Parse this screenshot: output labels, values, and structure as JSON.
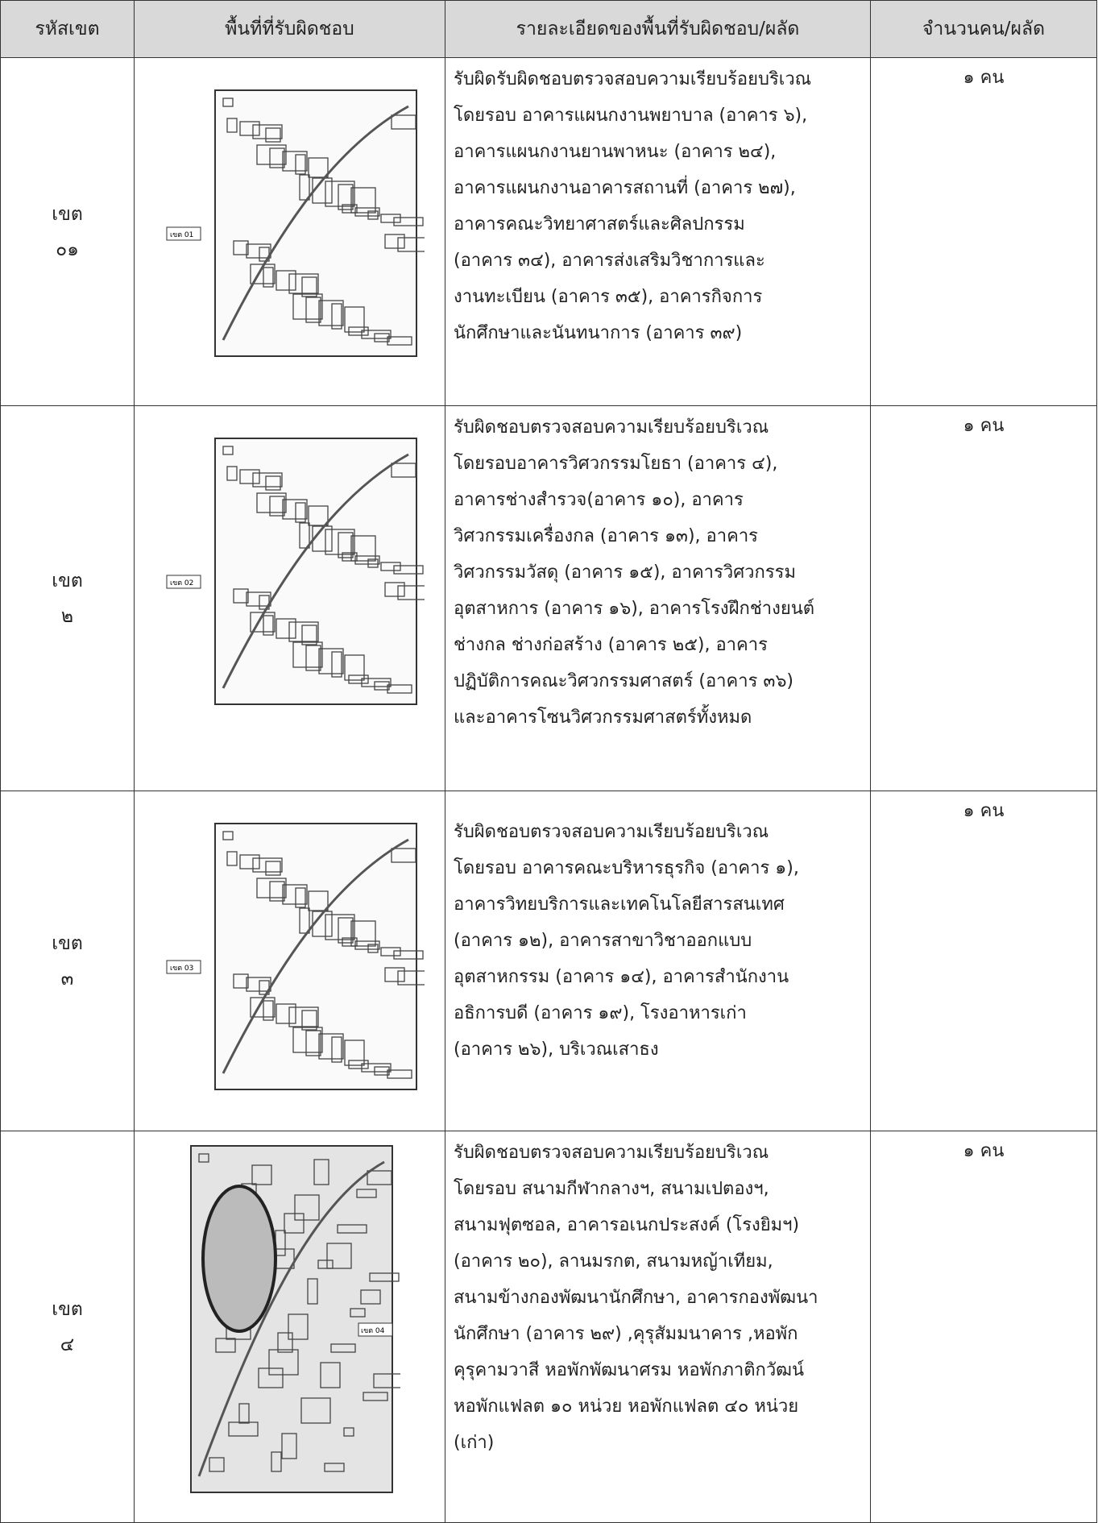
{
  "table": {
    "header": [
      "รหัสเขต",
      "พื้นที่ที่รับผิดชอบ",
      "รายละเอียดของพื้นที่รับผิดชอบ/ผลัด",
      "จำนวนคน/ผลัด"
    ],
    "rows": [
      {
        "code": [
          "เขต",
          "๐๑"
        ],
        "map_label": "เขต 01",
        "detail": [
          "รับผิดรับผิดชอบตรวจสอบความเรียบร้อยบริเวณ",
          "โดยรอบ อาคารแผนกงานพยาบาล (อาคาร ๖),",
          "อาคารแผนกงานยานพาหนะ (อาคาร ๒๔),",
          "อาคารแผนกงานอาคารสถานที่ (อาคาร ๒๗),",
          "อาคารคณะวิทยาศาสตร์และศิลปกรรม",
          "(อาคาร ๓๔), อาคารส่งเสริมวิชาการและ",
          "งานทะเบียน (อาคาร ๓๕), อาคารกิจการ",
          "นักศึกษาและนันทนาการ (อาคาร ๓๙)"
        ],
        "count": "๑ คน"
      },
      {
        "code": [
          "เขต",
          "๒"
        ],
        "map_label": "เขต 02",
        "detail": [
          "รับผิดชอบตรวจสอบความเรียบร้อยบริเวณ",
          "โดยรอบอาคารวิศวกรรมโยธา (อาคาร ๔),",
          "อาคารช่างสำรวจ(อาคาร ๑๐), อาคาร",
          "วิศวกรรมเครื่องกล (อาคาร ๑๓), อาคาร",
          "วิศวกรรมวัสดุ (อาคาร ๑๕), อาคารวิศวกรรม",
          "อุตสาหการ (อาคาร ๑๖), อาคารโรงฝึกช่างยนต์",
          "ช่างกล ช่างก่อสร้าง (อาคาร ๒๕), อาคาร",
          "ปฏิบัติการคณะวิศวกรรมศาสตร์ (อาคาร ๓๖)",
          "และอาคารโซนวิศวกรรมศาสตร์ทั้งหมด"
        ],
        "count": "๑ คน"
      },
      {
        "code": [
          "เขต",
          "๓"
        ],
        "map_label": "เขต 03",
        "detail": [
          "รับผิดชอบตรวจสอบความเรียบร้อยบริเวณ",
          "โดยรอบ อาคารคณะบริหารธุรกิจ (อาคาร ๑),",
          "อาคารวิทยบริการและเทคโนโลยีสารสนเทศ",
          "(อาคาร ๑๒), อาคารสาขาวิชาออกแบบ",
          "อุตสาหกรรม (อาคาร ๑๔), อาคารสำนักงาน",
          "อธิการบดี (อาคาร ๑๙), โรงอาหารเก่า",
          "(อาคาร ๒๖), บริเวณเสาธง"
        ],
        "count": "๑ คน"
      },
      {
        "code": [
          "เขต",
          "๔"
        ],
        "map_label": "เขต 04",
        "detail": [
          "รับผิดชอบตรวจสอบความเรียบร้อยบริเวณ",
          "โดยรอบ สนามกีฬากลางฯ, สนามเปตองฯ,",
          "สนามฟุตซอล, อาคารอเนกประสงค์ (โรงยิมฯ)",
          "(อาคาร ๒๐), ลานมรกต, สนามหญ้าเทียม,",
          "สนามข้างกองพัฒนานักศึกษา, อาคารกองพัฒนา",
          "นักศึกษา (อาคาร ๒๙) ,คุรุสัมมนาคาร ,หอพัก",
          "คุรุคามวาสี หอพักพัฒนาศรม หอพักภาติกวัฒน์",
          "หอพักแฟลต ๑๐ หน่วย หอพักแฟลต ๔๐ หน่วย",
          "(เก่า)"
        ],
        "count": "๑ คน"
      }
    ]
  }
}
